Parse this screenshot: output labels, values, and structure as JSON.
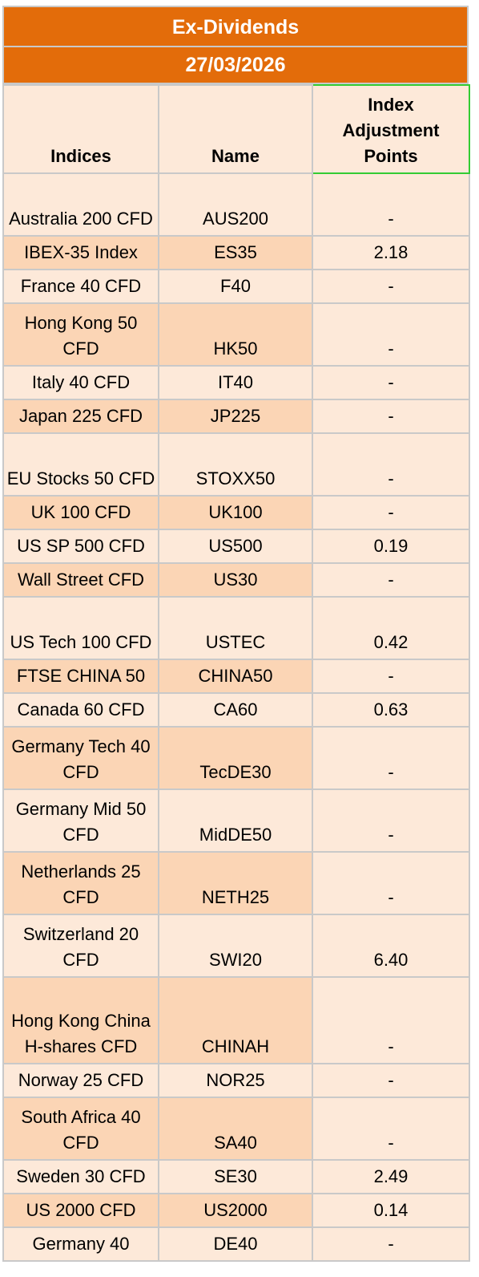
{
  "title": "Ex-Dividends",
  "date": "27/03/2026",
  "headers": [
    "Indices",
    "Name",
    "Index Adjustment Points"
  ],
  "rows": [
    {
      "index": "Australia 200 CFD",
      "name": "AUS200",
      "points": "-"
    },
    {
      "index": "IBEX-35 Index",
      "name": "ES35",
      "points": "2.18"
    },
    {
      "index": "France 40 CFD",
      "name": "F40",
      "points": "-"
    },
    {
      "index": "Hong Kong 50 CFD",
      "name": "HK50",
      "points": "-"
    },
    {
      "index": "Italy 40 CFD",
      "name": "IT40",
      "points": "-"
    },
    {
      "index": "Japan 225 CFD",
      "name": "JP225",
      "points": "-"
    },
    {
      "index": "EU Stocks 50 CFD",
      "name": "STOXX50",
      "points": "-"
    },
    {
      "index": "UK 100 CFD",
      "name": "UK100",
      "points": "-"
    },
    {
      "index": "US SP 500 CFD",
      "name": "US500",
      "points": "0.19"
    },
    {
      "index": "Wall Street CFD",
      "name": "US30",
      "points": "-"
    },
    {
      "index": "US Tech 100 CFD",
      "name": "USTEC",
      "points": "0.42"
    },
    {
      "index": "FTSE CHINA 50",
      "name": "CHINA50",
      "points": "-"
    },
    {
      "index": "Canada 60 CFD",
      "name": "CA60",
      "points": "0.63"
    },
    {
      "index": "Germany Tech 40 CFD",
      "name": "TecDE30",
      "points": "-"
    },
    {
      "index": "Germany Mid 50 CFD",
      "name": "MidDE50",
      "points": "-"
    },
    {
      "index": "Netherlands 25 CFD",
      "name": "NETH25",
      "points": "-"
    },
    {
      "index": "Switzerland 20 CFD",
      "name": "SWI20",
      "points": "6.40"
    },
    {
      "index": "Hong Kong China H-shares CFD",
      "name": "CHINAH",
      "points": "-"
    },
    {
      "index": "Norway 25 CFD",
      "name": "NOR25",
      "points": "-"
    },
    {
      "index": "South Africa 40 CFD",
      "name": "SA40",
      "points": "-"
    },
    {
      "index": "Sweden 30 CFD",
      "name": "SE30",
      "points": "2.49"
    },
    {
      "index": "US 2000 CFD",
      "name": "US2000",
      "points": "0.14"
    },
    {
      "index": "Germany 40",
      "name": "DE40",
      "points": "-"
    }
  ]
}
